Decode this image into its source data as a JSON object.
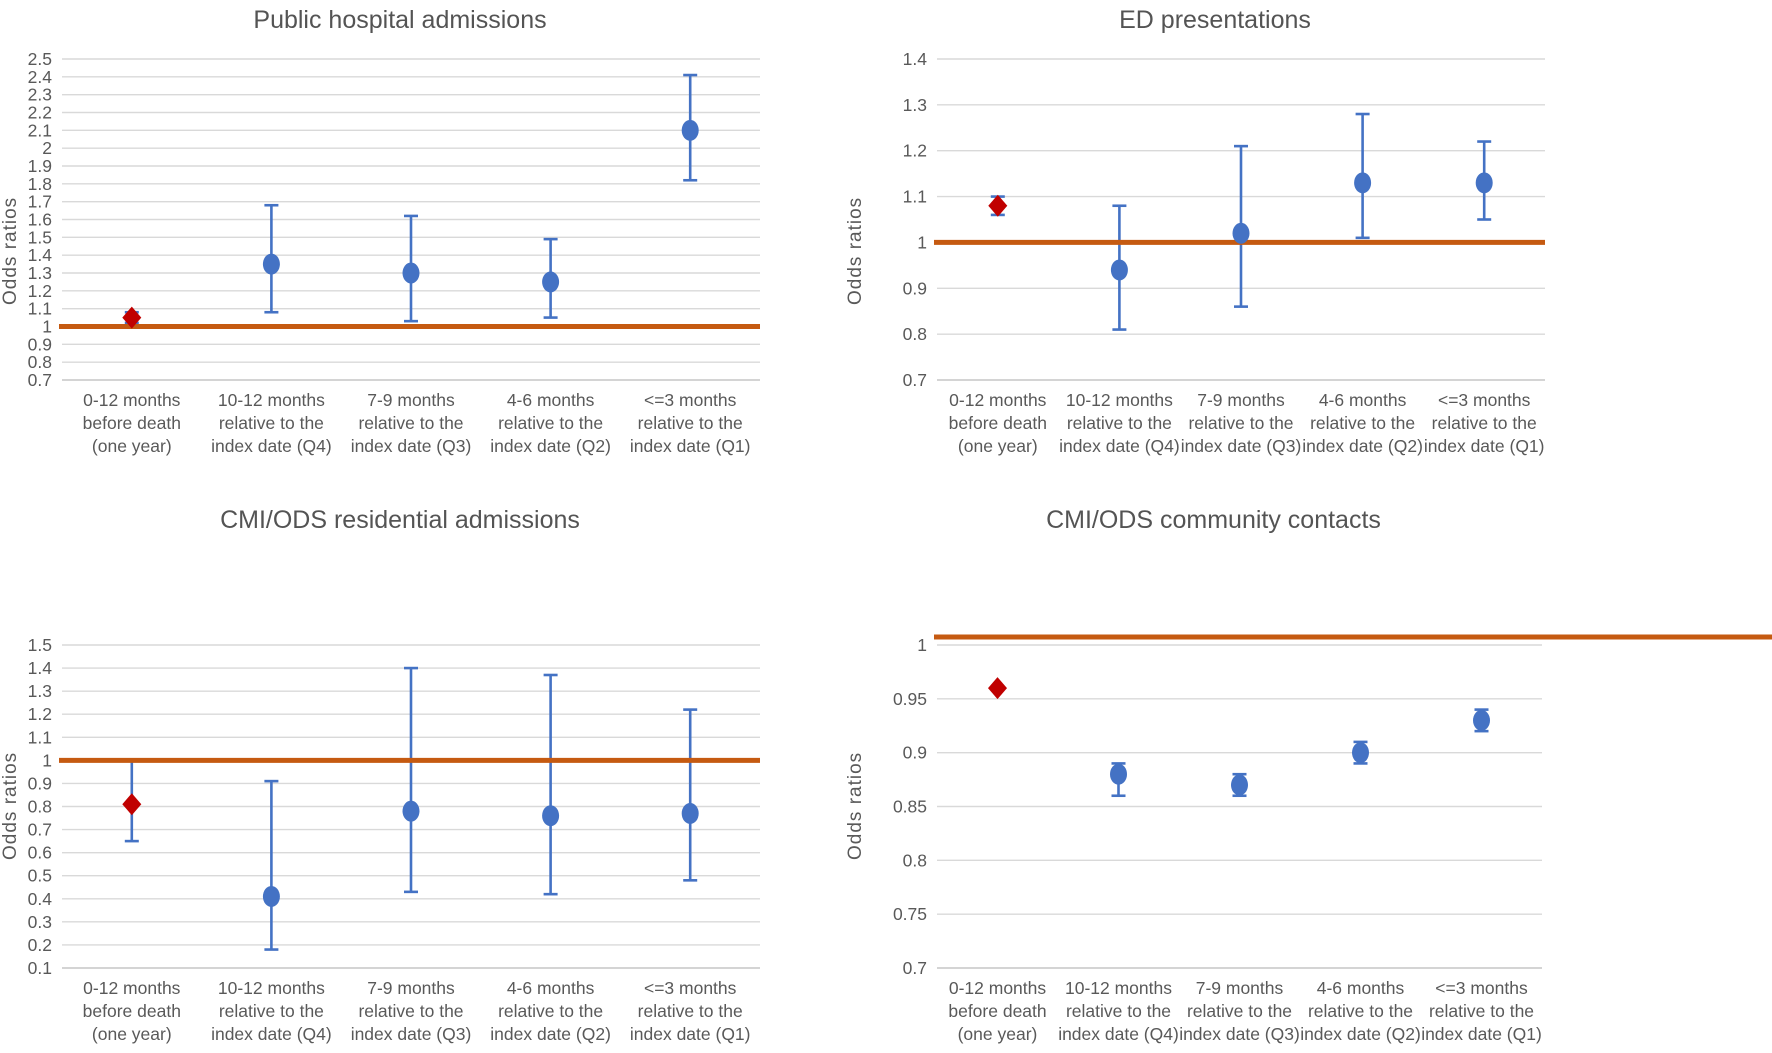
{
  "page": {
    "background": "#FFFFFF"
  },
  "colors": {
    "title_text": "#545454",
    "axis_text": "#595959",
    "gridline": "#D9D9D9",
    "axis_line": "#C6C6C6",
    "marker_blue": "#4472C4",
    "marker_red": "#C00000",
    "reference_orange": "#C55A11"
  },
  "chart_data": [
    {
      "type": "scatter",
      "title": "Public hospital admissions",
      "ylabel": "Odds ratios",
      "xlabel": "",
      "ylim": [
        0.7,
        2.5
      ],
      "ytick_labels": [
        "2.5",
        "2.4",
        "2.3",
        "2.2",
        "2.1",
        "2",
        "1.9",
        "1.8",
        "1.7",
        "1.6",
        "1.5",
        "1.4",
        "1.3",
        "1.2",
        "1.1",
        "1",
        "0.9",
        "0.8",
        "0.7"
      ],
      "grid": true,
      "legend": "none",
      "reference_line": {
        "y": 1,
        "color": "#C55A11"
      },
      "categories": [
        [
          "0-12 months",
          "before death",
          "(one year)"
        ],
        [
          "10-12 months",
          "relative to the",
          "index date (Q4)"
        ],
        [
          "7-9 months",
          "relative to the",
          "index date (Q3)"
        ],
        [
          "4-6 months",
          "relative to the",
          "index date (Q2)"
        ],
        [
          "<=3 months",
          "relative to the",
          "index date (Q1)"
        ]
      ],
      "points": [
        {
          "y": 1.05,
          "ci_low": 1.02,
          "ci_high": 1.08,
          "marker": "diamond",
          "color": "#C00000"
        },
        {
          "y": 1.35,
          "ci_low": 1.08,
          "ci_high": 1.68,
          "marker": "circle",
          "color": "#4472C4"
        },
        {
          "y": 1.3,
          "ci_low": 1.03,
          "ci_high": 1.62,
          "marker": "circle",
          "color": "#4472C4"
        },
        {
          "y": 1.25,
          "ci_low": 1.05,
          "ci_high": 1.49,
          "marker": "circle",
          "color": "#4472C4"
        },
        {
          "y": 2.1,
          "ci_low": 1.82,
          "ci_high": 2.41,
          "marker": "circle",
          "color": "#4472C4"
        }
      ]
    },
    {
      "type": "scatter",
      "title": "ED presentations",
      "ylabel": "Odds ratios",
      "xlabel": "",
      "ylim": [
        0.7,
        1.4
      ],
      "ytick_labels": [
        "1.4",
        "1.3",
        "1.2",
        "1.1",
        "1",
        "0.9",
        "0.8",
        "0.7"
      ],
      "grid": true,
      "legend": "none",
      "reference_line": {
        "y": 1,
        "color": "#C55A11"
      },
      "categories": [
        [
          "0-12 months",
          "before death",
          "(one year)"
        ],
        [
          "10-12 months",
          "relative to the",
          "index date (Q4)"
        ],
        [
          "7-9 months",
          "relative to the",
          "index date (Q3)"
        ],
        [
          "4-6 months",
          "relative to the",
          "index date (Q2)"
        ],
        [
          "<=3 months",
          "relative to the",
          "index date (Q1)"
        ]
      ],
      "points": [
        {
          "y": 1.08,
          "ci_low": 1.06,
          "ci_high": 1.1,
          "marker": "diamond",
          "color": "#C00000"
        },
        {
          "y": 0.94,
          "ci_low": 0.81,
          "ci_high": 1.08,
          "marker": "circle",
          "color": "#4472C4"
        },
        {
          "y": 1.02,
          "ci_low": 0.86,
          "ci_high": 1.21,
          "marker": "circle",
          "color": "#4472C4"
        },
        {
          "y": 1.13,
          "ci_low": 1.01,
          "ci_high": 1.28,
          "marker": "circle",
          "color": "#4472C4"
        },
        {
          "y": 1.13,
          "ci_low": 1.05,
          "ci_high": 1.22,
          "marker": "circle",
          "color": "#4472C4"
        }
      ]
    },
    {
      "type": "scatter",
      "title": "CMI/ODS residential admissions",
      "ylabel": "Odds ratios",
      "xlabel": "",
      "ylim": [
        0.1,
        1.5
      ],
      "ytick_labels": [
        "1.5",
        "1.4",
        "1.3",
        "1.2",
        "1.1",
        "1",
        "0.9",
        "0.8",
        "0.7",
        "0.6",
        "0.5",
        "0.4",
        "0.3",
        "0.2",
        "0.1"
      ],
      "grid": true,
      "legend": "none",
      "reference_line": {
        "y": 1,
        "color": "#C55A11"
      },
      "categories": [
        [
          "0-12 months",
          "before death",
          "(one year)"
        ],
        [
          "10-12 months",
          "relative to the",
          "index date (Q4)"
        ],
        [
          "7-9 months",
          "relative to the",
          "index date (Q3)"
        ],
        [
          "4-6 months",
          "relative to the",
          "index date (Q2)"
        ],
        [
          "<=3 months",
          "relative to the",
          "index date (Q1)"
        ]
      ],
      "points": [
        {
          "y": 0.81,
          "ci_low": 0.65,
          "ci_high": 1.0,
          "marker": "diamond",
          "color": "#C00000"
        },
        {
          "y": 0.41,
          "ci_low": 0.18,
          "ci_high": 0.91,
          "marker": "circle",
          "color": "#4472C4"
        },
        {
          "y": 0.78,
          "ci_low": 0.43,
          "ci_high": 1.4,
          "marker": "circle",
          "color": "#4472C4"
        },
        {
          "y": 0.76,
          "ci_low": 0.42,
          "ci_high": 1.37,
          "marker": "circle",
          "color": "#4472C4"
        },
        {
          "y": 0.77,
          "ci_low": 0.48,
          "ci_high": 1.22,
          "marker": "circle",
          "color": "#4472C4"
        }
      ]
    },
    {
      "type": "scatter",
      "title": "CMI/ODS community contacts",
      "ylabel": "Odds ratios",
      "xlabel": "",
      "ylim": [
        0.7,
        1.0
      ],
      "ytick_labels": [
        "1",
        "0.95",
        "0.9",
        "0.85",
        "0.8",
        "0.75",
        "0.7"
      ],
      "grid": true,
      "legend": "none",
      "reference_line": {
        "y": 1,
        "color": "#C55A11"
      },
      "categories": [
        [
          "0-12 months",
          "before death",
          "(one year)"
        ],
        [
          "10-12 months",
          "relative to the",
          "index date (Q4)"
        ],
        [
          "7-9 months",
          "relative to the",
          "index date (Q3)"
        ],
        [
          "4-6 months",
          "relative to the",
          "index date (Q2)"
        ],
        [
          "<=3 months",
          "relative to the",
          "index date (Q1)"
        ]
      ],
      "points": [
        {
          "y": 0.96,
          "marker": "diamond",
          "color": "#C00000"
        },
        {
          "y": 0.88,
          "ci_low": 0.86,
          "ci_high": 0.89,
          "marker": "circle",
          "color": "#4472C4"
        },
        {
          "y": 0.87,
          "ci_low": 0.86,
          "ci_high": 0.88,
          "marker": "circle",
          "color": "#4472C4"
        },
        {
          "y": 0.9,
          "ci_low": 0.89,
          "ci_high": 0.91,
          "marker": "circle",
          "color": "#4472C4"
        },
        {
          "y": 0.93,
          "ci_low": 0.92,
          "ci_high": 0.94,
          "marker": "circle",
          "color": "#4472C4"
        }
      ]
    }
  ]
}
